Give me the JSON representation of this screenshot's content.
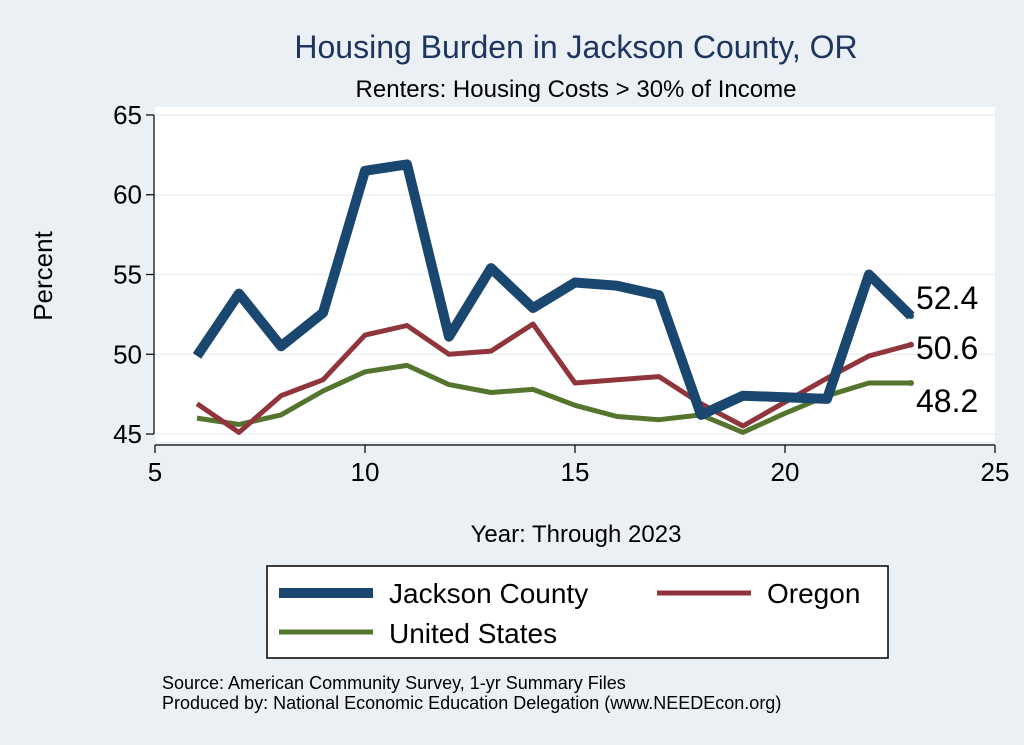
{
  "chart_data": {
    "type": "line",
    "title": "Housing Burden in Jackson County, OR",
    "subtitle": "Renters: Housing Costs > 30% of Income",
    "xlabel": "Year: Through 2023",
    "ylabel": "Percent",
    "xlim": [
      5,
      25
    ],
    "ylim": [
      44.5,
      65.5
    ],
    "xticks": [
      5,
      10,
      15,
      20,
      25
    ],
    "yticks": [
      45,
      50,
      55,
      60,
      65
    ],
    "grid": true,
    "legend_position": "bottom",
    "series": [
      {
        "name": "Jackson County",
        "color": "#1a476f",
        "x": [
          6,
          7,
          8,
          9,
          10,
          11,
          12,
          13,
          14,
          15,
          16,
          17,
          18,
          19,
          20,
          21,
          22,
          23
        ],
        "values": [
          49.9,
          53.8,
          50.5,
          52.6,
          61.5,
          61.9,
          51.1,
          55.4,
          52.9,
          54.5,
          54.3,
          53.7,
          46.2,
          47.4,
          47.3,
          47.2,
          55.0,
          52.4
        ],
        "end_label": "52.4"
      },
      {
        "name": "Oregon",
        "color": "#90353b",
        "x": [
          6,
          7,
          8,
          9,
          10,
          11,
          12,
          13,
          14,
          15,
          16,
          17,
          18,
          19,
          20,
          21,
          22,
          23
        ],
        "values": [
          46.9,
          45.1,
          47.4,
          48.4,
          51.2,
          51.8,
          50.0,
          50.2,
          51.9,
          48.2,
          48.4,
          48.6,
          46.9,
          45.5,
          47.0,
          48.5,
          49.9,
          50.6
        ],
        "end_label": "50.6"
      },
      {
        "name": "United States",
        "color": "#55752f",
        "x": [
          6,
          7,
          8,
          9,
          10,
          11,
          12,
          13,
          14,
          15,
          16,
          17,
          18,
          19,
          20,
          21,
          22,
          23
        ],
        "values": [
          46.0,
          45.6,
          46.2,
          47.7,
          48.9,
          49.3,
          48.1,
          47.6,
          47.8,
          46.8,
          46.1,
          45.9,
          46.2,
          45.1,
          46.3,
          47.4,
          48.2,
          48.2
        ],
        "end_label": "48.2"
      }
    ],
    "notes": [
      "Source: American Community Survey, 1-yr Summary Files",
      "Produced by: National Economic Education Delegation (www.NEEDEcon.org)"
    ]
  }
}
